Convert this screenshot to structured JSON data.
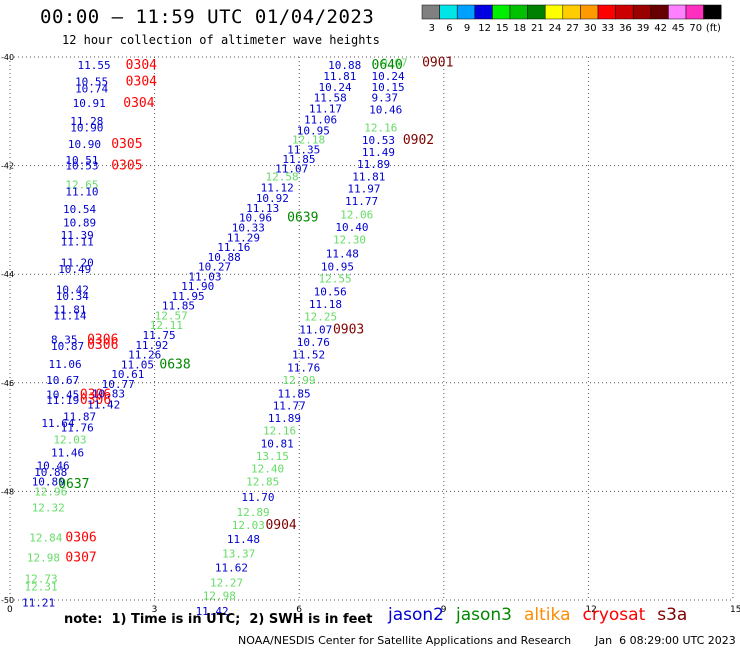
{
  "header": {
    "title": "00:00 – 11:59 UTC 01/04/2023",
    "subtitle": "12 hour collection of altimeter wave heights"
  },
  "colorbar": {
    "labels": [
      "3",
      "6",
      "9",
      "12",
      "15",
      "18",
      "21",
      "24",
      "27",
      "30",
      "33",
      "36",
      "39",
      "42",
      "45",
      "70",
      "(ft)"
    ],
    "colors": [
      "#808080",
      "#00e5e5",
      "#00a0ff",
      "#0000e0",
      "#00ee00",
      "#00c000",
      "#008000",
      "#ffff00",
      "#ffcc00",
      "#ff9900",
      "#ff0000",
      "#cc0000",
      "#990000",
      "#660000",
      "#ff80ff",
      "#ff30c0",
      "#000000"
    ]
  },
  "chart_data": {
    "type": "scatter",
    "xlabel": "",
    "ylabel": "",
    "xlim": [
      0,
      15
    ],
    "ylim": [
      -40,
      -50
    ],
    "x_ticks": [
      "0",
      "3",
      "6",
      "9",
      "12",
      "15"
    ],
    "y_ticks": [
      "-40",
      "-42",
      "-44",
      "-46",
      "-48",
      "-50"
    ],
    "satellite_colors": {
      "jason2": "#0000d0",
      "jason3": "#008800",
      "altika": "#ff8c00",
      "cryosat": "#ff0000",
      "s3a": "#800000"
    },
    "light_color": "#66dd66",
    "points": [
      {
        "t": "11.55",
        "x": 1.4,
        "y": -40.15,
        "c": "jason2"
      },
      {
        "t": "0304",
        "x": 2.4,
        "y": -40.15,
        "c": "cryosat"
      },
      {
        "t": "10.55",
        "x": 1.35,
        "y": -40.45,
        "c": "jason2"
      },
      {
        "t": "0304",
        "x": 2.4,
        "y": -40.45,
        "c": "cryosat"
      },
      {
        "t": "10.74",
        "x": 1.35,
        "y": -40.58,
        "c": "jason2"
      },
      {
        "t": "10.91",
        "x": 1.3,
        "y": -40.85,
        "c": "jason2"
      },
      {
        "t": "0304",
        "x": 2.35,
        "y": -40.85,
        "c": "cryosat"
      },
      {
        "t": "11.28",
        "x": 1.25,
        "y": -41.18,
        "c": "jason2"
      },
      {
        "t": "10.90",
        "x": 1.25,
        "y": -41.3,
        "c": "jason2"
      },
      {
        "t": "10.90",
        "x": 1.2,
        "y": -41.6,
        "c": "jason2"
      },
      {
        "t": "0305",
        "x": 2.1,
        "y": -41.6,
        "c": "cryosat"
      },
      {
        "t": "10.51",
        "x": 1.15,
        "y": -41.9,
        "c": "jason2"
      },
      {
        "t": "10.53",
        "x": 1.15,
        "y": -42.0,
        "c": "jason2"
      },
      {
        "t": "0305",
        "x": 2.1,
        "y": -42.0,
        "c": "cryosat"
      },
      {
        "t": "12.65",
        "x": 1.15,
        "y": -42.35,
        "c": "light"
      },
      {
        "t": "11.10",
        "x": 1.15,
        "y": -42.48,
        "c": "jason2"
      },
      {
        "t": "10.54",
        "x": 1.1,
        "y": -42.8,
        "c": "jason2"
      },
      {
        "t": "10.89",
        "x": 1.1,
        "y": -43.05,
        "c": "jason2"
      },
      {
        "t": "11.39",
        "x": 1.05,
        "y": -43.28,
        "c": "jason2"
      },
      {
        "t": "11.11",
        "x": 1.05,
        "y": -43.4,
        "c": "jason2"
      },
      {
        "t": "11.20",
        "x": 1.05,
        "y": -43.78,
        "c": "jason2"
      },
      {
        "t": "10.49",
        "x": 1.0,
        "y": -43.9,
        "c": "jason2"
      },
      {
        "t": "10.42",
        "x": 0.95,
        "y": -44.28,
        "c": "jason2"
      },
      {
        "t": "10.34",
        "x": 0.95,
        "y": -44.4,
        "c": "jason2"
      },
      {
        "t": "11.81",
        "x": 0.9,
        "y": -44.65,
        "c": "jason2"
      },
      {
        "t": "11.14",
        "x": 0.9,
        "y": -44.76,
        "c": "jason2"
      },
      {
        "t": "8.35",
        "x": 0.85,
        "y": -45.2,
        "c": "jason2"
      },
      {
        "t": "0306",
        "x": 1.6,
        "y": -45.2,
        "c": "cryosat"
      },
      {
        "t": "10.87",
        "x": 0.85,
        "y": -45.32,
        "c": "jason2"
      },
      {
        "t": "0306",
        "x": 1.6,
        "y": -45.3,
        "c": "cryosat"
      },
      {
        "t": "11.06",
        "x": 0.8,
        "y": -45.65,
        "c": "jason2"
      },
      {
        "t": "10.67",
        "x": 0.75,
        "y": -45.95,
        "c": "jason2"
      },
      {
        "t": "10.45",
        "x": 0.75,
        "y": -46.22,
        "c": "jason2"
      },
      {
        "t": "0306",
        "x": 1.45,
        "y": -46.22,
        "c": "cryosat"
      },
      {
        "t": "11.19",
        "x": 0.75,
        "y": -46.32,
        "c": "jason2"
      },
      {
        "t": "0306",
        "x": 1.45,
        "y": -46.32,
        "c": "cryosat"
      },
      {
        "t": "11.87",
        "x": 1.1,
        "y": -46.62,
        "c": "jason2"
      },
      {
        "t": "11.64",
        "x": 0.65,
        "y": -46.74,
        "c": "jason2"
      },
      {
        "t": "11.76",
        "x": 1.05,
        "y": -46.82,
        "c": "jason2"
      },
      {
        "t": "12.03",
        "x": 0.9,
        "y": -47.04,
        "c": "light"
      },
      {
        "t": "11.46",
        "x": 0.85,
        "y": -47.28,
        "c": "jason2"
      },
      {
        "t": "10.46",
        "x": 0.55,
        "y": -47.52,
        "c": "jason2"
      },
      {
        "t": "10.88",
        "x": 0.5,
        "y": -47.64,
        "c": "jason2"
      },
      {
        "t": "10.80",
        "x": 0.45,
        "y": -47.82,
        "c": "jason2"
      },
      {
        "t": "0637",
        "x": 1.0,
        "y": -47.86,
        "c": "jason3"
      },
      {
        "t": "12.96",
        "x": 0.5,
        "y": -48.0,
        "c": "light"
      },
      {
        "t": "12.32",
        "x": 0.45,
        "y": -48.3,
        "c": "light"
      },
      {
        "t": "12.84",
        "x": 0.4,
        "y": -48.85,
        "c": "light"
      },
      {
        "t": "0306",
        "x": 1.15,
        "y": -48.85,
        "c": "cryosat"
      },
      {
        "t": "12.98",
        "x": 0.35,
        "y": -49.22,
        "c": "light"
      },
      {
        "t": "0307",
        "x": 1.15,
        "y": -49.22,
        "c": "cryosat"
      },
      {
        "t": "12.73",
        "x": 0.3,
        "y": -49.6,
        "c": "light"
      },
      {
        "t": "12.31",
        "x": 0.3,
        "y": -49.75,
        "c": "light"
      },
      {
        "t": "11.21",
        "x": 0.25,
        "y": -50.05,
        "c": "jason2"
      },
      {
        "t": "10.88",
        "x": 6.6,
        "y": -40.15,
        "c": "jason2"
      },
      {
        "t": "9.67",
        "x": 7.7,
        "y": -40.1,
        "c": "light"
      },
      {
        "t": "0640",
        "x": 7.5,
        "y": -40.15,
        "c": "jason3"
      },
      {
        "t": "0901",
        "x": 8.55,
        "y": -40.1,
        "c": "s3a"
      },
      {
        "t": "11.81",
        "x": 6.5,
        "y": -40.35,
        "c": "jason2"
      },
      {
        "t": "10.24",
        "x": 7.5,
        "y": -40.35,
        "c": "jason2"
      },
      {
        "t": "10.24",
        "x": 6.4,
        "y": -40.55,
        "c": "jason2"
      },
      {
        "t": "10.15",
        "x": 7.5,
        "y": -40.55,
        "c": "jason2"
      },
      {
        "t": "11.58",
        "x": 6.3,
        "y": -40.75,
        "c": "jason2"
      },
      {
        "t": "9.37",
        "x": 7.5,
        "y": -40.75,
        "c": "jason2"
      },
      {
        "t": "11.17",
        "x": 6.2,
        "y": -40.95,
        "c": "jason2"
      },
      {
        "t": "10.46",
        "x": 7.45,
        "y": -40.97,
        "c": "jason2"
      },
      {
        "t": "11.06",
        "x": 6.1,
        "y": -41.15,
        "c": "jason2"
      },
      {
        "t": "10.95",
        "x": 5.95,
        "y": -41.35,
        "c": "jason2"
      },
      {
        "t": "12.16",
        "x": 7.35,
        "y": -41.3,
        "c": "light"
      },
      {
        "t": "12.18",
        "x": 5.85,
        "y": -41.52,
        "c": "light"
      },
      {
        "t": "10.53",
        "x": 7.3,
        "y": -41.53,
        "c": "jason2"
      },
      {
        "t": "0902",
        "x": 8.15,
        "y": -41.53,
        "c": "s3a"
      },
      {
        "t": "11.35",
        "x": 5.75,
        "y": -41.7,
        "c": "jason2"
      },
      {
        "t": "11.49",
        "x": 7.3,
        "y": -41.75,
        "c": "jason2"
      },
      {
        "t": "11.85",
        "x": 5.65,
        "y": -41.88,
        "c": "jason2"
      },
      {
        "t": "11.89",
        "x": 7.2,
        "y": -41.97,
        "c": "jason2"
      },
      {
        "t": "11.07",
        "x": 5.5,
        "y": -42.05,
        "c": "jason2"
      },
      {
        "t": "11.81",
        "x": 7.1,
        "y": -42.2,
        "c": "jason2"
      },
      {
        "t": "12.58",
        "x": 5.3,
        "y": -42.2,
        "c": "light"
      },
      {
        "t": "11.12",
        "x": 5.2,
        "y": -42.4,
        "c": "jason2"
      },
      {
        "t": "11.97",
        "x": 7.0,
        "y": -42.42,
        "c": "jason2"
      },
      {
        "t": "10.92",
        "x": 5.1,
        "y": -42.6,
        "c": "jason2"
      },
      {
        "t": "11.77",
        "x": 6.95,
        "y": -42.65,
        "c": "jason2"
      },
      {
        "t": "11.13",
        "x": 4.9,
        "y": -42.78,
        "c": "jason2"
      },
      {
        "t": "12.06",
        "x": 6.85,
        "y": -42.9,
        "c": "light"
      },
      {
        "t": "10.96",
        "x": 4.75,
        "y": -42.96,
        "c": "jason2"
      },
      {
        "t": "0639",
        "x": 5.75,
        "y": -42.96,
        "c": "jason3"
      },
      {
        "t": "10.33",
        "x": 4.6,
        "y": -43.14,
        "c": "jason2"
      },
      {
        "t": "10.40",
        "x": 6.75,
        "y": -43.13,
        "c": "jason2"
      },
      {
        "t": "11.29",
        "x": 4.5,
        "y": -43.32,
        "c": "jason2"
      },
      {
        "t": "12.30",
        "x": 6.7,
        "y": -43.36,
        "c": "light"
      },
      {
        "t": "11.16",
        "x": 4.3,
        "y": -43.5,
        "c": "jason2"
      },
      {
        "t": "10.88",
        "x": 4.1,
        "y": -43.68,
        "c": "jason2"
      },
      {
        "t": "11.48",
        "x": 6.55,
        "y": -43.62,
        "c": "jason2"
      },
      {
        "t": "10.27",
        "x": 3.9,
        "y": -43.86,
        "c": "jason2"
      },
      {
        "t": "10.95",
        "x": 6.45,
        "y": -43.86,
        "c": "jason2"
      },
      {
        "t": "11.03",
        "x": 3.7,
        "y": -44.04,
        "c": "jason2"
      },
      {
        "t": "12.55",
        "x": 6.4,
        "y": -44.08,
        "c": "light"
      },
      {
        "t": "11.90",
        "x": 3.55,
        "y": -44.22,
        "c": "jason2"
      },
      {
        "t": "11.95",
        "x": 3.35,
        "y": -44.4,
        "c": "jason2"
      },
      {
        "t": "10.56",
        "x": 6.3,
        "y": -44.32,
        "c": "jason2"
      },
      {
        "t": "11.85",
        "x": 3.15,
        "y": -44.58,
        "c": "jason2"
      },
      {
        "t": "11.18",
        "x": 6.2,
        "y": -44.55,
        "c": "jason2"
      },
      {
        "t": "12.57",
        "x": 3.0,
        "y": -44.76,
        "c": "light"
      },
      {
        "t": "12.25",
        "x": 6.1,
        "y": -44.78,
        "c": "light"
      },
      {
        "t": "12.11",
        "x": 2.9,
        "y": -44.94,
        "c": "light"
      },
      {
        "t": "11.07",
        "x": 6.0,
        "y": -45.02,
        "c": "jason2"
      },
      {
        "t": "0903",
        "x": 6.7,
        "y": -45.02,
        "c": "s3a"
      },
      {
        "t": "11.75",
        "x": 2.75,
        "y": -45.12,
        "c": "jason2"
      },
      {
        "t": "10.76",
        "x": 5.95,
        "y": -45.25,
        "c": "jason2"
      },
      {
        "t": "11.92",
        "x": 2.6,
        "y": -45.3,
        "c": "jason2"
      },
      {
        "t": "11.26",
        "x": 2.45,
        "y": -45.48,
        "c": "jason2"
      },
      {
        "t": "11.52",
        "x": 5.85,
        "y": -45.48,
        "c": "jason2"
      },
      {
        "t": "11.05",
        "x": 2.3,
        "y": -45.66,
        "c": "jason2"
      },
      {
        "t": "0638",
        "x": 3.1,
        "y": -45.66,
        "c": "jason3"
      },
      {
        "t": "11.76",
        "x": 5.75,
        "y": -45.72,
        "c": "jason2"
      },
      {
        "t": "10.61",
        "x": 2.1,
        "y": -45.84,
        "c": "jason2"
      },
      {
        "t": "12.99",
        "x": 5.65,
        "y": -45.95,
        "c": "light"
      },
      {
        "t": "10.77",
        "x": 1.9,
        "y": -46.02,
        "c": "jason2"
      },
      {
        "t": "10.83",
        "x": 1.7,
        "y": -46.2,
        "c": "jason2"
      },
      {
        "t": "11.85",
        "x": 5.55,
        "y": -46.2,
        "c": "jason2"
      },
      {
        "t": "11.42",
        "x": 1.6,
        "y": -46.4,
        "c": "jason2"
      },
      {
        "t": "11.77",
        "x": 5.45,
        "y": -46.42,
        "c": "jason2"
      },
      {
        "t": "11.89",
        "x": 5.35,
        "y": -46.65,
        "c": "jason2"
      },
      {
        "t": "12.16",
        "x": 5.25,
        "y": -46.88,
        "c": "light"
      },
      {
        "t": "10.81",
        "x": 5.2,
        "y": -47.12,
        "c": "jason2"
      },
      {
        "t": "13.15",
        "x": 5.1,
        "y": -47.35,
        "c": "light"
      },
      {
        "t": "12.40",
        "x": 5.0,
        "y": -47.58,
        "c": "light"
      },
      {
        "t": "12.85",
        "x": 4.9,
        "y": -47.82,
        "c": "light"
      },
      {
        "t": "11.70",
        "x": 4.8,
        "y": -48.1,
        "c": "jason2"
      },
      {
        "t": "12.89",
        "x": 4.7,
        "y": -48.38,
        "c": "light"
      },
      {
        "t": "12.03",
        "x": 4.6,
        "y": -48.62,
        "c": "light"
      },
      {
        "t": "0904",
        "x": 5.3,
        "y": -48.62,
        "c": "s3a"
      },
      {
        "t": "11.48",
        "x": 4.5,
        "y": -48.88,
        "c": "jason2"
      },
      {
        "t": "13.37",
        "x": 4.4,
        "y": -49.14,
        "c": "light"
      },
      {
        "t": "11.62",
        "x": 4.25,
        "y": -49.4,
        "c": "jason2"
      },
      {
        "t": "12.27",
        "x": 4.15,
        "y": -49.68,
        "c": "light"
      },
      {
        "t": "12.98",
        "x": 4.0,
        "y": -49.92,
        "c": "light"
      },
      {
        "t": "11.42",
        "x": 3.85,
        "y": -50.2,
        "c": "jason2"
      }
    ]
  },
  "note": "note:  1) Time is in UTC;  2) SWH is in feet",
  "legend": {
    "jason2": "jason2",
    "jason3": "jason3",
    "altika": "altika",
    "cryosat": "cryosat",
    "s3a": "s3a"
  },
  "footer": {
    "credit": "NOAA/NESDIS Center for Satellite Applications and Research",
    "timestamp": "Jan  6 08:29:00 UTC 2023"
  }
}
